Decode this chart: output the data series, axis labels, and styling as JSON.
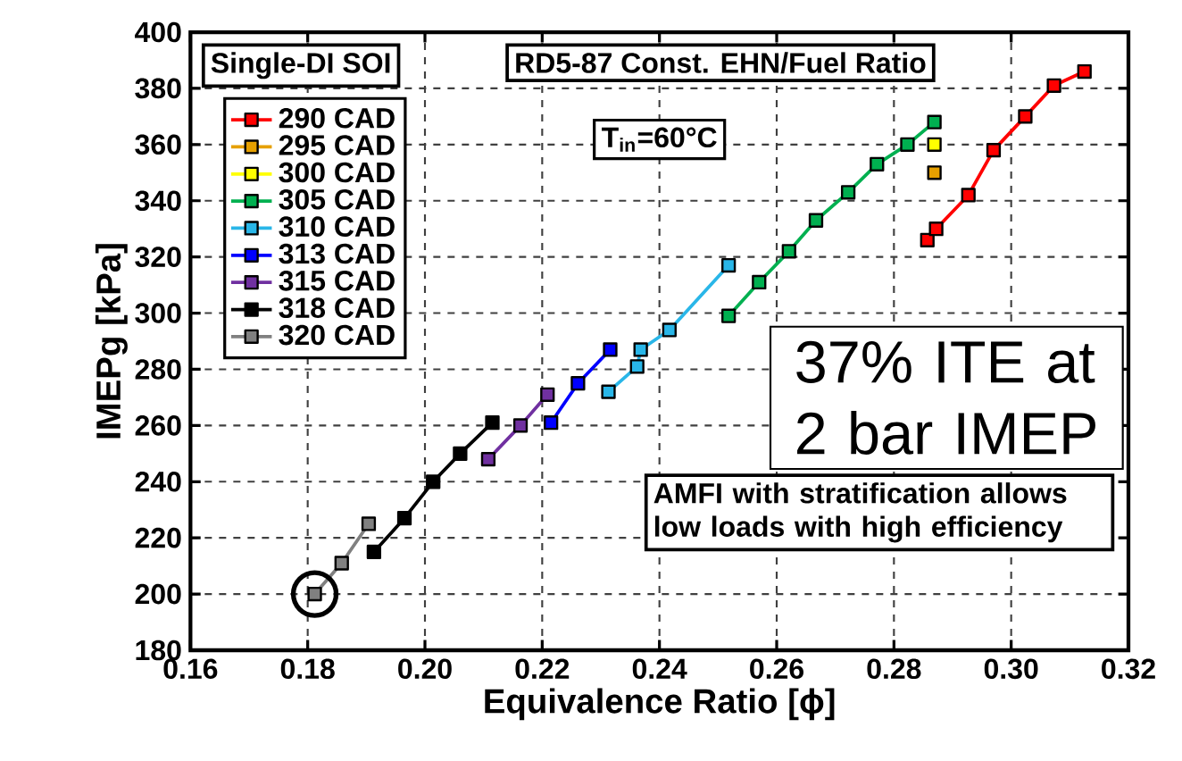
{
  "chart_data": {
    "type": "line",
    "xlabel": "Equivalence Ratio [ϕ]",
    "ylabel": "IMEPg [kPa]",
    "legend_title": "Single-DI SOI",
    "legend": "top left",
    "grid": true,
    "marker": "square",
    "line_style": "solid",
    "xlim": [
      0.16,
      0.32
    ],
    "ylim": [
      180,
      400
    ],
    "xticks": [
      0.16,
      0.18,
      {
        "value": 0.2,
        "label": "0.20"
      },
      0.22,
      0.24,
      0.26,
      0.28,
      {
        "value": 0.3,
        "label": "0.30"
      },
      0.32
    ],
    "yticks": [
      180,
      200,
      220,
      240,
      260,
      280,
      300,
      320,
      340,
      360,
      380,
      400
    ],
    "annotations": [
      "RD5-87 Const. EHN/Fuel Ratio",
      "T$_{in}$=60°C",
      "37% ITE at 2 bar IMEP",
      "AMFI with stratification allows low loads with high efficiency"
    ],
    "series": [
      {
        "name": "290 CAD",
        "color": "#ff0000",
        "x": [
          0.2857,
          0.2872,
          0.2927,
          0.297,
          0.3024,
          0.3073,
          0.3125
        ],
        "values": [
          326,
          330,
          342,
          358,
          370,
          381,
          386
        ]
      },
      {
        "name": "295 CAD",
        "color": "#e6a000",
        "x": [
          0.2869
        ],
        "values": [
          350
        ]
      },
      {
        "name": "300 CAD",
        "color": "#ffff00",
        "x": [
          0.2869
        ],
        "values": [
          360
        ]
      },
      {
        "name": "305 CAD",
        "color": "#00b050",
        "x": [
          0.2518,
          0.257,
          0.2621,
          0.2667,
          0.2722,
          0.2771,
          0.2823,
          0.2869
        ],
        "values": [
          299,
          311,
          322,
          333,
          343,
          353,
          360,
          368
        ]
      },
      {
        "name": "310 CAD",
        "color": "#29b6e8",
        "x": [
          0.2313,
          0.2362,
          0.2368,
          0.2417,
          0.2518
        ],
        "values": [
          272,
          281,
          287,
          294,
          317
        ]
      },
      {
        "name": "313 CAD",
        "color": "#0000ff",
        "x": [
          0.2215,
          0.2261,
          0.2316
        ],
        "values": [
          261,
          275,
          287
        ]
      },
      {
        "name": "315 CAD",
        "color": "#7030a0",
        "x": [
          0.2108,
          0.2163,
          0.2209
        ],
        "values": [
          248,
          260,
          271
        ]
      },
      {
        "name": "318 CAD",
        "color": "#000000",
        "x": [
          0.1913,
          0.1965,
          0.2014,
          0.206,
          0.2115
        ],
        "values": [
          215,
          227,
          240,
          250,
          261
        ]
      },
      {
        "name": "320 CAD",
        "color": "#808080",
        "x": [
          0.1812,
          0.1858,
          0.1904
        ],
        "values": [
          200,
          211,
          225
        ]
      }
    ]
  }
}
